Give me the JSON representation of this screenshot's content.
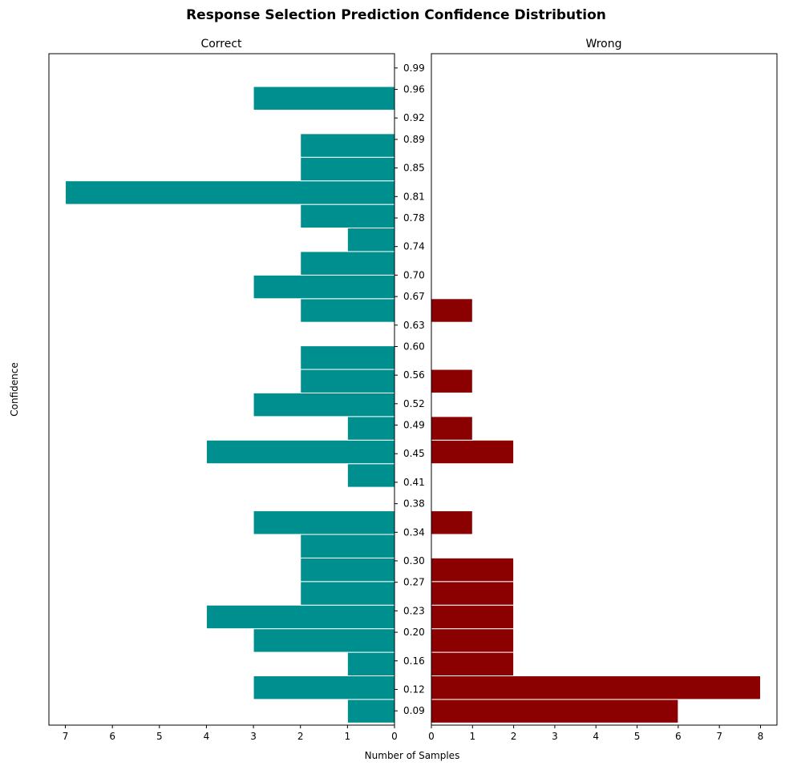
{
  "chart_data": {
    "type": "bar",
    "orientation": "horizontal",
    "title": "Response Selection Prediction Confidence Distribution",
    "ylabel": "Confidence",
    "xlabel": "Number of Samples",
    "y_tick_labels": [
      "0.09",
      "0.12",
      "0.16",
      "0.20",
      "0.23",
      "0.27",
      "0.30",
      "0.34",
      "0.38",
      "0.41",
      "0.45",
      "0.49",
      "0.52",
      "0.56",
      "0.60",
      "0.63",
      "0.67",
      "0.70",
      "0.74",
      "0.78",
      "0.81",
      "0.85",
      "0.89",
      "0.92",
      "0.96",
      "0.99"
    ],
    "bin_edges": [
      0.073,
      0.106,
      0.139,
      0.172,
      0.205,
      0.238,
      0.271,
      0.304,
      0.337,
      0.37,
      0.403,
      0.436,
      0.469,
      0.502,
      0.535,
      0.568,
      0.601,
      0.634,
      0.667,
      0.7,
      0.733,
      0.766,
      0.799,
      0.832,
      0.865,
      0.898,
      0.931,
      0.964
    ],
    "ylim": [
      0.07,
      1.01
    ],
    "grid": false,
    "panels": [
      {
        "name": "Correct",
        "direction": "inverted",
        "color": "#008f8f",
        "xlim": [
          0,
          7.35
        ],
        "x_ticks": [
          "7",
          "6",
          "5",
          "4",
          "3",
          "2",
          "1",
          "0"
        ],
        "values": [
          1,
          3,
          1,
          3,
          4,
          2,
          2,
          2,
          3,
          0,
          1,
          4,
          1,
          3,
          2,
          2,
          0,
          2,
          3,
          2,
          1,
          2,
          7,
          2,
          2,
          0,
          3
        ]
      },
      {
        "name": "Wrong",
        "direction": "normal",
        "color": "#8b0000",
        "xlim": [
          0,
          8.4
        ],
        "x_ticks": [
          "0",
          "1",
          "2",
          "3",
          "4",
          "5",
          "6",
          "7",
          "8"
        ],
        "values": [
          6,
          8,
          2,
          2,
          2,
          2,
          2,
          0,
          1,
          0,
          0,
          2,
          1,
          0,
          1,
          0,
          0,
          1,
          0,
          0,
          0,
          0,
          0,
          0,
          0,
          0,
          0
        ]
      }
    ]
  }
}
